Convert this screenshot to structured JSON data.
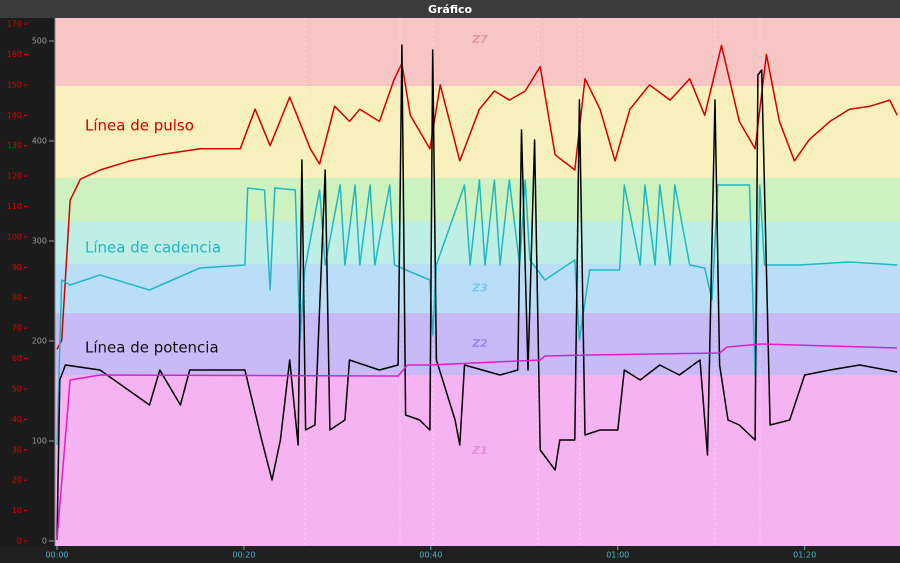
{
  "chart_data": {
    "type": "line",
    "title": "Gráfico",
    "xlim": [
      0,
      90.2
    ],
    "xticks": [
      {
        "value": 0,
        "label": "00:00"
      },
      {
        "value": 20,
        "label": "00:20"
      },
      {
        "value": 40,
        "label": "00:40"
      },
      {
        "value": 60,
        "label": "01:00"
      },
      {
        "value": 80,
        "label": "01:20"
      }
    ],
    "ylim": [
      0,
      172
    ],
    "yticks": [
      0,
      10,
      20,
      30,
      40,
      50,
      60,
      70,
      80,
      90,
      100,
      110,
      120,
      130,
      140,
      150,
      160,
      170
    ],
    "y_color": "#e00000",
    "y2lim": [
      0,
      523
    ],
    "y2ticks": [
      0,
      100,
      200,
      300,
      400,
      500
    ],
    "y2_color": "#9a9a9a",
    "zones": [
      {
        "name": "Z1",
        "from": 0,
        "to": 166,
        "color": "#f6b3f1",
        "label_color": "#e58fdc"
      },
      {
        "name": "Z2",
        "from": 166,
        "to": 228,
        "color": "#c8baf6",
        "label_color": "#9b8be0"
      },
      {
        "name": "Z3",
        "from": 228,
        "to": 277,
        "color": "#badef8",
        "label_color": "#7fc6ea"
      },
      {
        "from": 277,
        "to": 320,
        "color": "#bfeee6"
      },
      {
        "from": 320,
        "to": 363,
        "color": "#cdf2c0"
      },
      {
        "from": 363,
        "to": 455,
        "color": "#f8f1bd"
      },
      {
        "name": "Z7",
        "from": 455,
        "to": 523,
        "color": "#f8c5c5",
        "label_color": "#e79a9a"
      }
    ],
    "series": [
      {
        "name": "Línea de pulso",
        "color": "#d40000",
        "axis": "y",
        "x": [
          0,
          0.5,
          1.4,
          2.5,
          4.6,
          7.8,
          11.0,
          15.3,
          19.6,
          21.2,
          22.8,
          24.9,
          27.1,
          28.1,
          29.7,
          31.3,
          32.4,
          34.5,
          36.1,
          36.9,
          37.8,
          39.9,
          41.0,
          43.1,
          45.2,
          46.8,
          48.4,
          50.1,
          51.7,
          53.3,
          55.4,
          56.5,
          58.1,
          59.7,
          61.3,
          63.4,
          65.6,
          67.7,
          69.3,
          71.1,
          73.0,
          74.7,
          75.9,
          77.3,
          78.9,
          80.5,
          82.7,
          84.8,
          87.0,
          89.1,
          89.9
        ],
        "values": [
          63,
          66,
          112,
          119,
          122,
          125,
          127,
          129,
          129,
          142,
          130,
          146,
          129,
          124,
          143,
          138,
          142,
          138,
          152,
          157,
          140,
          129,
          150,
          125,
          142,
          148,
          145,
          148,
          156,
          127,
          122,
          152,
          142,
          125,
          142,
          150,
          145,
          152,
          140,
          163,
          138,
          129,
          160,
          138,
          125,
          132,
          138,
          142,
          143,
          145,
          140
        ]
      },
      {
        "name": "Línea de cadencia",
        "color": "#1fb8c2",
        "axis": "y2",
        "x": [
          0,
          0.5,
          1.4,
          4.6,
          9.9,
          15.3,
          20.1,
          20.4,
          22.2,
          22.8,
          23.3,
          25.5,
          26.0,
          26.5,
          28.1,
          28.7,
          30.3,
          30.8,
          31.9,
          32.4,
          33.5,
          34.0,
          35.6,
          36.1,
          39.9,
          40.2,
          40.6,
          43.6,
          44.2,
          45.2,
          45.8,
          46.8,
          47.4,
          48.4,
          49.5,
          50.1,
          50.6,
          52.2,
          55.4,
          55.9,
          57.0,
          60.2,
          60.7,
          62.4,
          62.9,
          64.0,
          64.5,
          65.6,
          66.1,
          67.7,
          69.3,
          70.1,
          70.7,
          74.1,
          74.7,
          75.2,
          75.7,
          79.4,
          84.8,
          89.9
        ],
        "values": [
          96,
          261,
          256,
          266,
          251,
          273,
          276,
          353,
          351,
          251,
          353,
          351,
          201,
          271,
          351,
          276,
          356,
          276,
          356,
          276,
          356,
          276,
          356,
          276,
          261,
          206,
          276,
          356,
          276,
          361,
          276,
          361,
          276,
          361,
          276,
          361,
          281,
          261,
          281,
          201,
          271,
          271,
          356,
          276,
          356,
          276,
          356,
          276,
          356,
          276,
          273,
          241,
          356,
          356,
          166,
          356,
          276,
          276,
          279,
          276
        ]
      },
      {
        "name": "Línea de potencia",
        "color": "#000000",
        "axis": "y2",
        "x": [
          0,
          0.3,
          0.9,
          4.6,
          9.9,
          11.0,
          13.2,
          14.2,
          20.1,
          21.9,
          23.0,
          23.9,
          24.9,
          25.8,
          26.2,
          26.6,
          27.6,
          28.7,
          29.2,
          30.8,
          31.3,
          34.5,
          36.5,
          36.9,
          37.3,
          38.8,
          39.9,
          40.2,
          40.6,
          42.6,
          43.1,
          43.6,
          47.4,
          49.3,
          49.7,
          50.4,
          51.1,
          51.7,
          53.3,
          53.8,
          55.4,
          55.9,
          56.5,
          58.1,
          60.0,
          60.7,
          62.4,
          64.5,
          66.6,
          68.8,
          69.6,
          70.4,
          70.9,
          71.8,
          73.0,
          74.7,
          75.0,
          75.4,
          76.3,
          78.4,
          80.0,
          82.7,
          85.9,
          89.9
        ],
        "values": [
          1,
          161,
          176,
          171,
          136,
          171,
          136,
          171,
          171,
          101,
          61,
          101,
          181,
          96,
          381,
          111,
          116,
          371,
          111,
          121,
          181,
          171,
          176,
          496,
          126,
          121,
          111,
          491,
          181,
          121,
          96,
          176,
          166,
          171,
          411,
          171,
          401,
          91,
          71,
          101,
          101,
          441,
          106,
          111,
          111,
          171,
          161,
          176,
          166,
          181,
          86,
          441,
          176,
          121,
          116,
          101,
          466,
          471,
          116,
          121,
          166,
          171,
          176,
          169
        ]
      },
      {
        "color": "#e01ec4",
        "axis": "y2",
        "x": [
          0,
          1.4,
          4.6,
          36.5,
          37.5,
          39.9,
          51.7,
          52.2,
          57.0,
          70.9,
          71.7,
          75.4,
          89.9
        ],
        "values": [
          1,
          161,
          166,
          165,
          176,
          176,
          181,
          185,
          186,
          188,
          194,
          197,
          193
        ]
      }
    ]
  }
}
